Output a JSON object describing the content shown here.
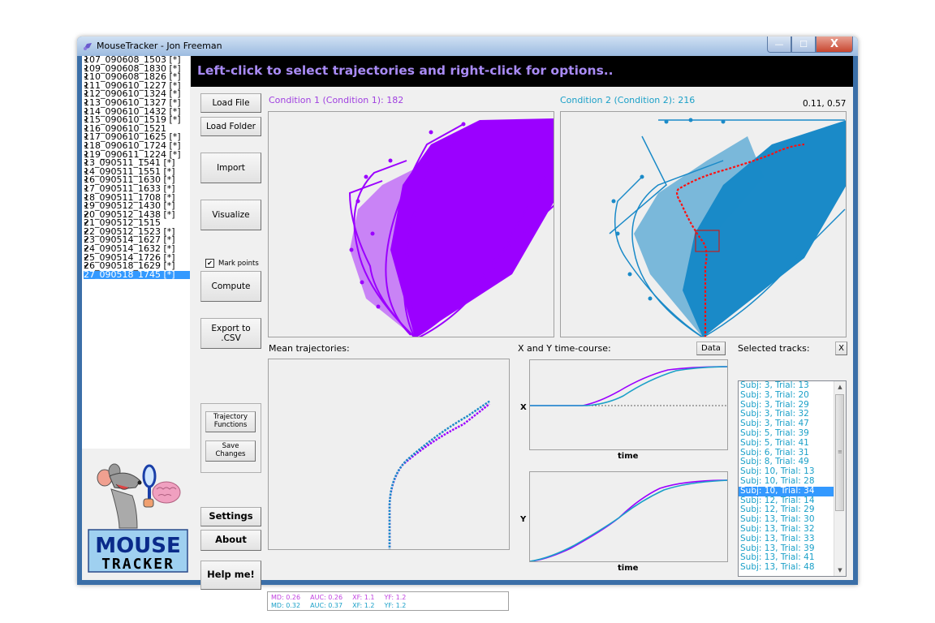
{
  "window": {
    "title": "MouseTracker - Jon Freeman",
    "controls": {
      "minimize": "—",
      "maximize": "☐",
      "close": "X"
    }
  },
  "banner": {
    "message": "Left-click to select trajectories and right-click for options.."
  },
  "files": [
    {
      "name": "107_090608_1503 [*]",
      "checked": true
    },
    {
      "name": "109_090608_1830 [*]",
      "checked": true
    },
    {
      "name": "110_090608_1826 [*]",
      "checked": true
    },
    {
      "name": "111_090610_1227 [*]",
      "checked": true
    },
    {
      "name": "112_090610_1324 [*]",
      "checked": true
    },
    {
      "name": "113_090610_1327 [*]",
      "checked": true
    },
    {
      "name": "114_090610_1432 [*]",
      "checked": true
    },
    {
      "name": "115_090610_1519 [*]",
      "checked": true
    },
    {
      "name": "116_090610_1521",
      "checked": true
    },
    {
      "name": "117_090610_1625 [*]",
      "checked": true
    },
    {
      "name": "118_090610_1724 [*]",
      "checked": true
    },
    {
      "name": "119_090611_1224 [*]",
      "checked": true
    },
    {
      "name": "13_090511_1541 [*]",
      "checked": true
    },
    {
      "name": "14_090511_1551 [*]",
      "checked": true
    },
    {
      "name": "16_090511_1630 [*]",
      "checked": true
    },
    {
      "name": "17_090511_1633 [*]",
      "checked": true
    },
    {
      "name": "18_090511_1708 [*]",
      "checked": true
    },
    {
      "name": "19_090512_1430 [*]",
      "checked": true
    },
    {
      "name": "20_090512_1438 [*]",
      "checked": true
    },
    {
      "name": "21_090512_1515",
      "checked": true
    },
    {
      "name": "22_090512_1523 [*]",
      "checked": true
    },
    {
      "name": "23_090514_1627 [*]",
      "checked": true
    },
    {
      "name": "24_090514_1632 [*]",
      "checked": true
    },
    {
      "name": "25_090514_1726 [*]",
      "checked": true
    },
    {
      "name": "26_090518_1629 [*]",
      "checked": true
    },
    {
      "name": "27_090518_1745 [*]",
      "checked": true,
      "selected": true
    }
  ],
  "buttons": {
    "load_file": "Load File",
    "load_folder": "Load Folder",
    "import": "Import",
    "visualize": "Visualize",
    "mark_points": "Mark points",
    "compute": "Compute",
    "export_line1": "Export to",
    "export_line2": ".CSV",
    "traj_line1": "Trajectory",
    "traj_line2": "Functions",
    "save_line1": "Save",
    "save_line2": "Changes",
    "settings": "Settings",
    "about": "About",
    "help": "Help me!",
    "data": "Data",
    "clear_tracks": "X"
  },
  "checkbox": {
    "mark_points_checked": "✔"
  },
  "conditions": {
    "c1": {
      "label": "Condition 1 (Condition 1): 182",
      "color": "#9b30ff"
    },
    "c2": {
      "label": "Condition 2 (Condition 2): 216",
      "color": "#1ba0c8"
    },
    "cursor_coords": "0.11, 0.57"
  },
  "sections": {
    "mean_traj": "Mean trajectories:",
    "timecourse": "X and Y time-course:",
    "selected": "Selected tracks:",
    "x_axis": "X",
    "y_axis": "Y",
    "time": "time"
  },
  "stats": {
    "c1": {
      "md": "MD: 0.26",
      "auc": "AUC: 0.26",
      "xf": "XF: 1.1",
      "yf": "YF: 1.2",
      "color": "#c040e0"
    },
    "c2": {
      "md": "MD: 0.32",
      "auc": "AUC: 0.37",
      "xf": "XF: 1.2",
      "yf": "YF: 1.2",
      "color": "#1ba0c8"
    }
  },
  "tracks": [
    "Subj: 3, Trial: 13",
    "Subj: 3, Trial: 20",
    "Subj: 3, Trial: 29",
    "Subj: 3, Trial: 32",
    "Subj: 3, Trial: 47",
    "Subj: 5, Trial: 39",
    "Subj: 5, Trial: 41",
    "Subj: 6, Trial: 31",
    "Subj: 8, Trial: 49",
    "Subj: 10, Trial: 13",
    "Subj: 10, Trial: 28",
    "Subj: 10, Trial: 34",
    "Subj: 12, Trial: 14",
    "Subj: 12, Trial: 29",
    "Subj: 13, Trial: 30",
    "Subj: 13, Trial: 32",
    "Subj: 13, Trial: 33",
    "Subj: 13, Trial: 39",
    "Subj: 13, Trial: 41",
    "Subj: 13, Trial: 48"
  ],
  "selected_track_index": 11,
  "logo": {
    "line1": "MOUSE",
    "line2": "TRACKER"
  }
}
